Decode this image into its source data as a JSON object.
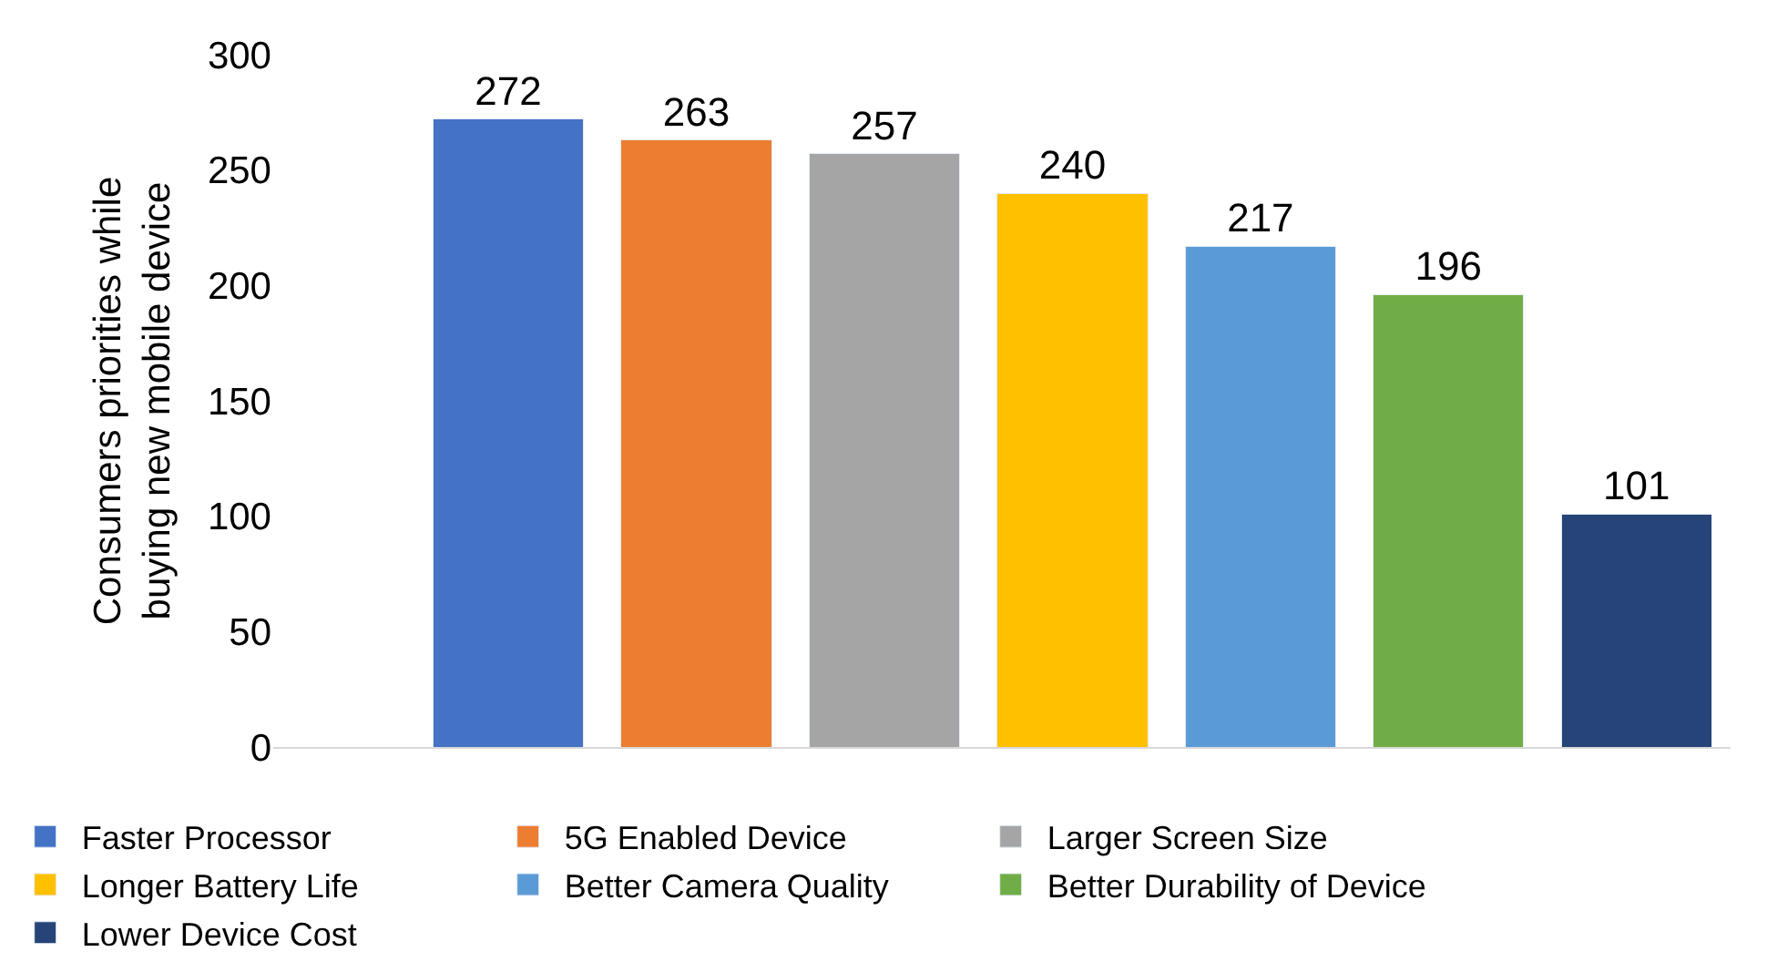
{
  "chart_data": {
    "type": "bar",
    "ylabel": "Consumers priorities while buying new mobile device",
    "categories": [
      null,
      null,
      null,
      null,
      null,
      null,
      null
    ],
    "series": [
      {
        "name": "Faster Processor",
        "color": "#4472c4",
        "values": [
          272,
          null,
          null,
          null,
          null,
          null,
          null
        ]
      },
      {
        "name": "5G Enabled Device",
        "color": "#ed7d31",
        "values": [
          null,
          263,
          null,
          null,
          null,
          null,
          null
        ]
      },
      {
        "name": "Larger Screen Size",
        "color": "#a5a5a5",
        "values": [
          null,
          null,
          257,
          null,
          null,
          null,
          null
        ]
      },
      {
        "name": "Longer Battery Life",
        "color": "#ffc000",
        "values": [
          null,
          null,
          null,
          240,
          null,
          null,
          null
        ]
      },
      {
        "name": "Better Camera Quality",
        "color": "#5b9bd5",
        "values": [
          null,
          null,
          null,
          null,
          217,
          null,
          null
        ]
      },
      {
        "name": "Better Durability of Device",
        "color": "#70ad47",
        "values": [
          null,
          null,
          null,
          null,
          null,
          196,
          null
        ]
      },
      {
        "name": "Lower Device Cost",
        "color": "#264478",
        "values": [
          null,
          null,
          null,
          null,
          null,
          null,
          101
        ]
      }
    ],
    "ylim": [
      0,
      300
    ],
    "yticks": [
      0,
      50,
      100,
      150,
      200,
      250,
      300
    ],
    "stacked": true,
    "grid": false,
    "legend": "bottom",
    "data_labels": true,
    "tick_labels": "y"
  }
}
